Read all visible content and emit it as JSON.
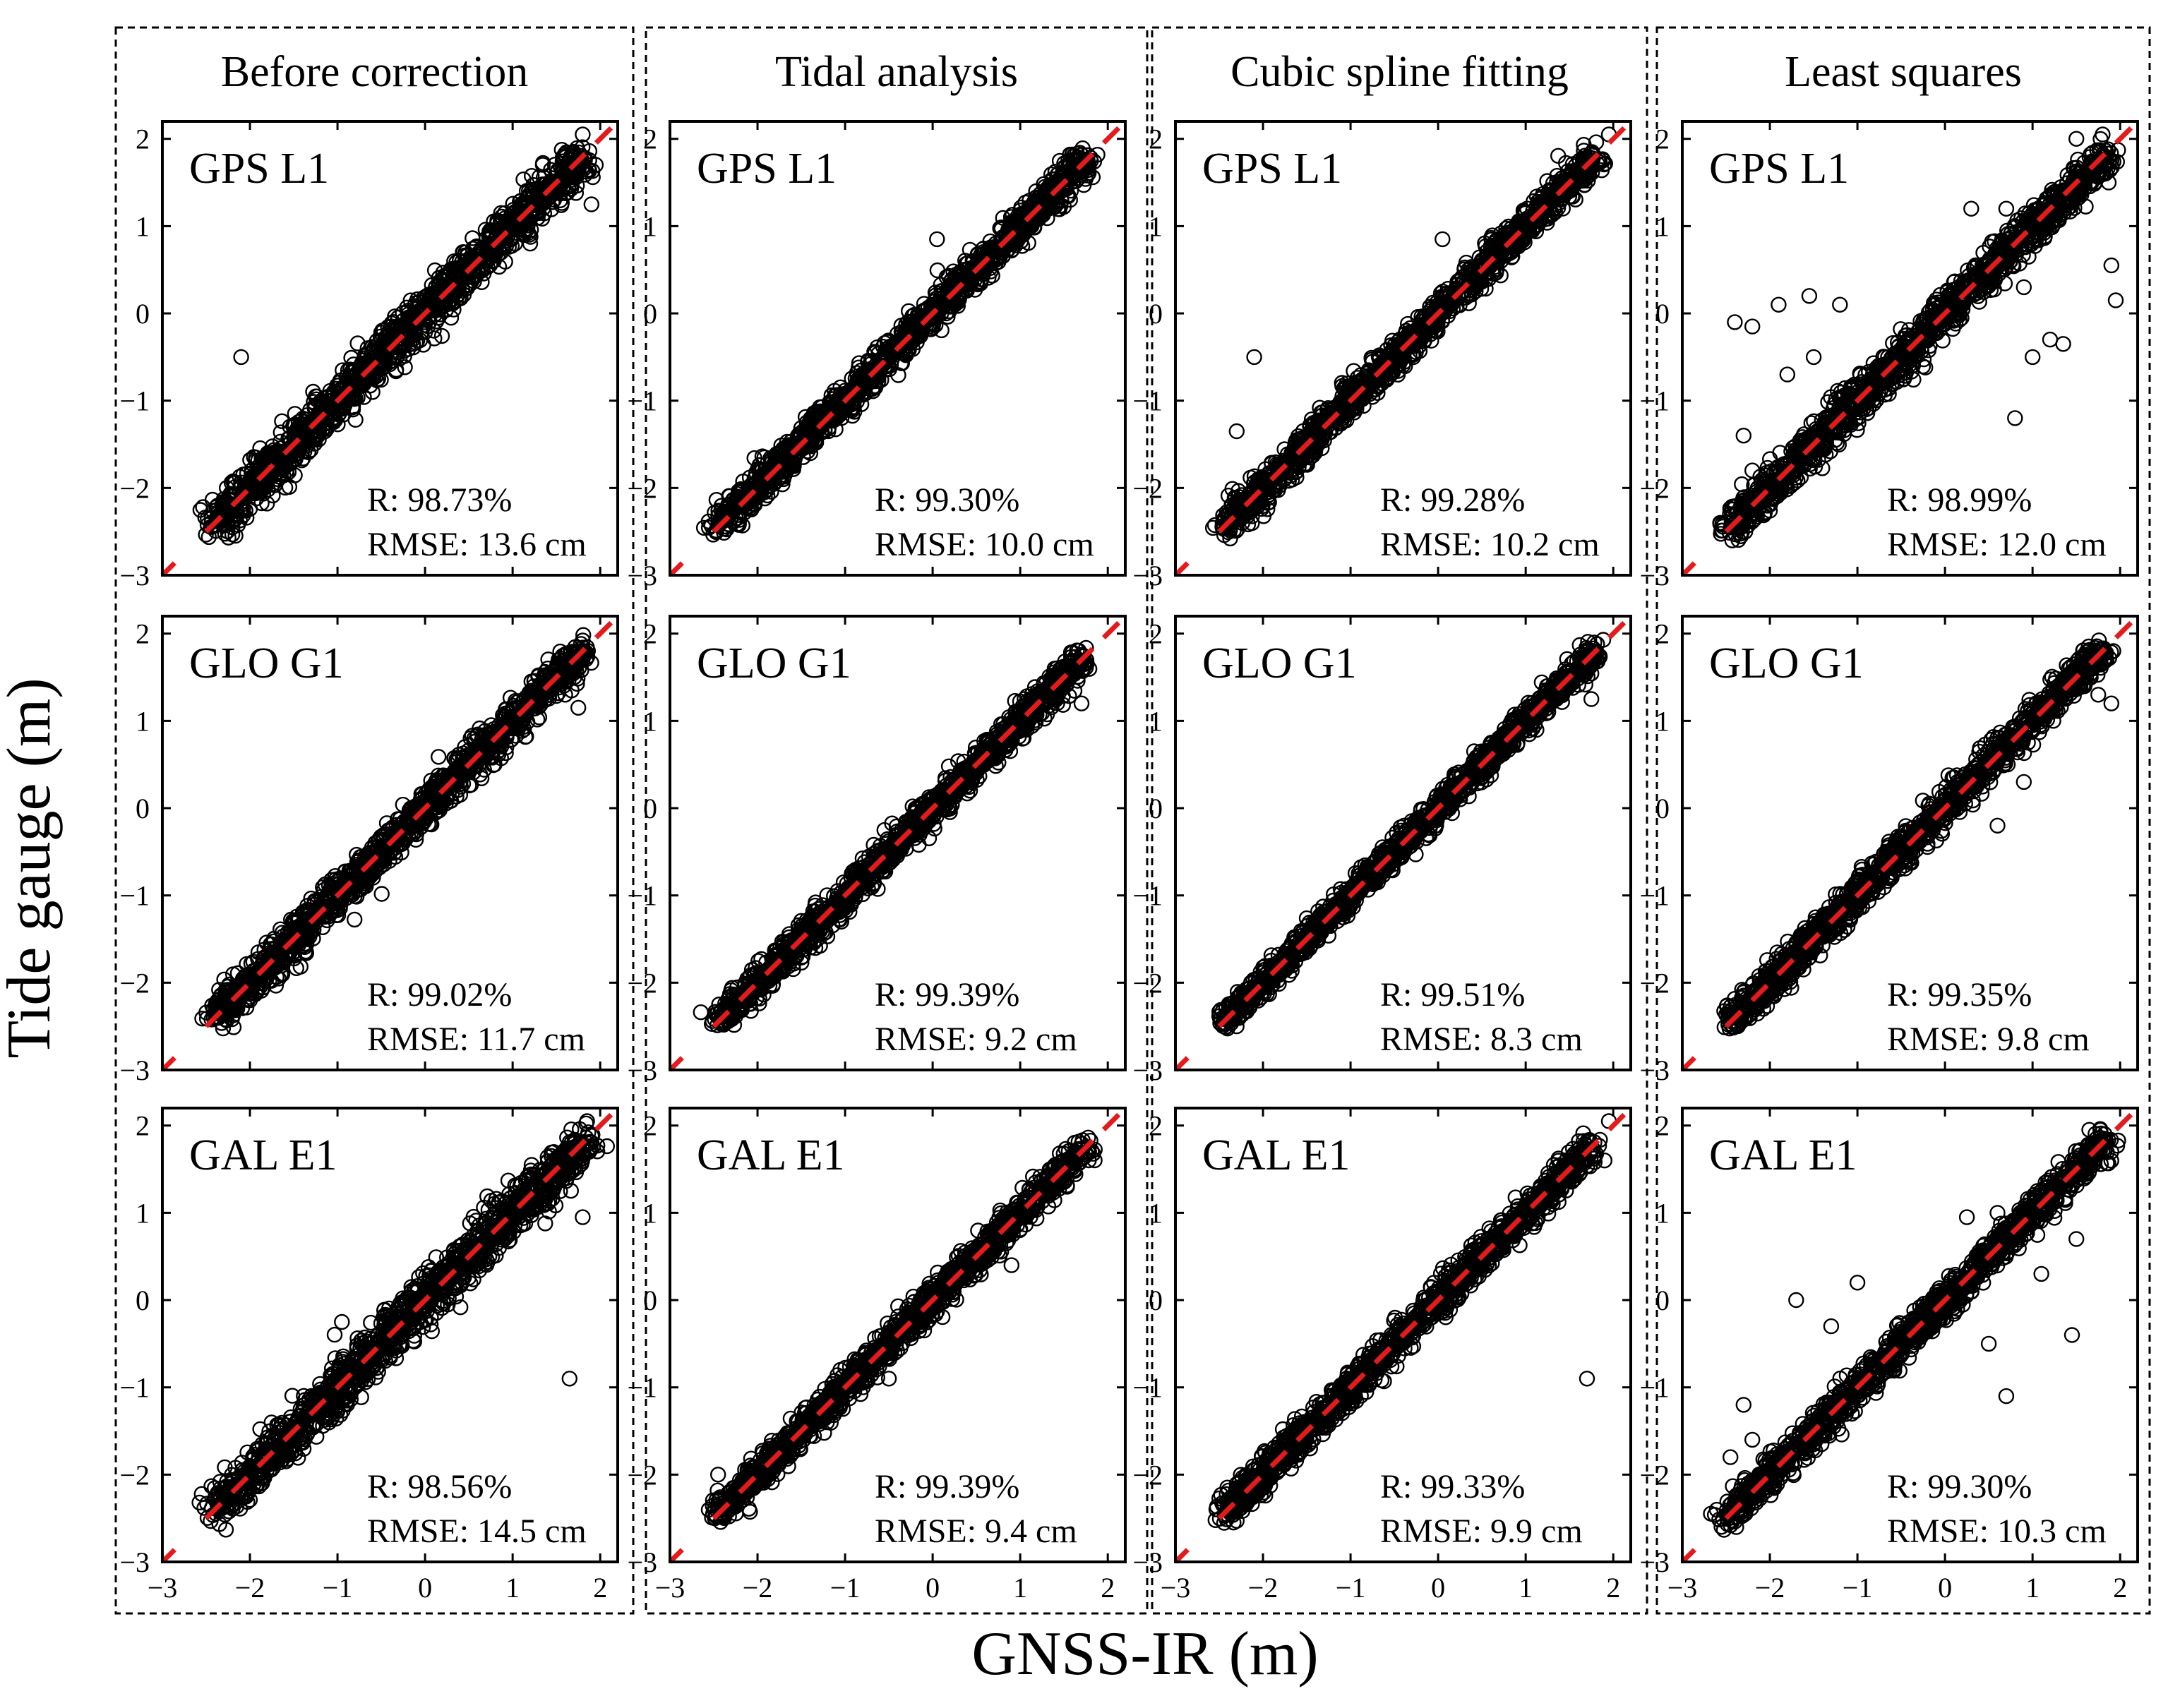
{
  "figure": {
    "x_axis_title": "GNSS-IR (m)",
    "y_axis_title": "Tide gauge (m)",
    "columns": [
      "Before correction",
      "Tidal analysis",
      "Cubic spline fitting",
      "Least squares"
    ],
    "rows": [
      "GPS L1",
      "GLO G1",
      "GAL E1"
    ]
  },
  "colors": {
    "reference_line": "#e41a1c",
    "markers": "#000000"
  },
  "chart_data": {
    "type": "scatter",
    "xlim": [
      -3,
      2.2
    ],
    "ylim": [
      -3,
      2.2
    ],
    "xticks": [
      "-3",
      "-2",
      "-1",
      "0",
      "1",
      "2"
    ],
    "yticks": [
      "-3",
      "-2",
      "-1",
      "0",
      "1",
      "2"
    ],
    "reference_line": {
      "from": [
        -2.5,
        -2.5
      ],
      "to": [
        2.2,
        2.2
      ],
      "style": "dashed",
      "color": "#e41a1c"
    },
    "panels": [
      {
        "column": "Before correction",
        "signal": "GPS L1",
        "r_text": "R: 98.73%",
        "rmse_text": "RMSE: 13.6 cm",
        "scatter_sd_m": 0.136,
        "range": [
          -2.4,
          1.85
        ],
        "outliers": [
          [
            -2.1,
            -0.5
          ],
          [
            1.8,
            2.05
          ],
          [
            1.2,
            0.8
          ],
          [
            1.9,
            1.25
          ]
        ]
      },
      {
        "column": "Tidal analysis",
        "signal": "GPS L1",
        "r_text": "R: 99.30%",
        "rmse_text": "RMSE: 10.0 cm",
        "scatter_sd_m": 0.1,
        "range": [
          -2.45,
          1.75
        ],
        "outliers": [
          [
            0.05,
            0.85
          ]
        ]
      },
      {
        "column": "Cubic spline fitting",
        "signal": "GPS L1",
        "r_text": "R: 99.28%",
        "rmse_text": "RMSE: 10.2 cm",
        "scatter_sd_m": 0.102,
        "range": [
          -2.45,
          1.8
        ],
        "outliers": [
          [
            -2.1,
            -0.5
          ],
          [
            1.95,
            2.05
          ],
          [
            0.05,
            0.85
          ],
          [
            -2.3,
            -1.35
          ]
        ]
      },
      {
        "column": "Least squares",
        "signal": "GPS L1",
        "r_text": "R: 98.99%",
        "rmse_text": "RMSE: 12.0 cm",
        "scatter_sd_m": 0.12,
        "range": [
          -2.45,
          1.85
        ],
        "outliers": [
          [
            -2.4,
            -0.1
          ],
          [
            -2.2,
            -0.15
          ],
          [
            -1.9,
            0.1
          ],
          [
            -1.55,
            0.2
          ],
          [
            -1.2,
            0.1
          ],
          [
            -1.5,
            -0.5
          ],
          [
            -2.2,
            -1.8
          ],
          [
            -2.3,
            -1.4
          ],
          [
            -1.8,
            -0.7
          ],
          [
            0.3,
            1.2
          ],
          [
            0.7,
            1.2
          ],
          [
            1.9,
            0.55
          ],
          [
            1.95,
            0.15
          ],
          [
            1.35,
            -0.35
          ],
          [
            0.8,
            -1.2
          ],
          [
            1.5,
            2.0
          ],
          [
            1.8,
            2.05
          ],
          [
            0.9,
            0.3
          ],
          [
            1.0,
            -0.5
          ],
          [
            1.2,
            -0.3
          ]
        ]
      },
      {
        "column": "Before correction",
        "signal": "GLO G1",
        "r_text": "R: 99.02%",
        "rmse_text": "RMSE: 11.7 cm",
        "scatter_sd_m": 0.117,
        "range": [
          -2.4,
          1.8
        ],
        "outliers": [
          [
            1.75,
            1.15
          ],
          [
            1.6,
            1.3
          ]
        ]
      },
      {
        "column": "Tidal analysis",
        "signal": "GLO G1",
        "r_text": "R: 99.39%",
        "rmse_text": "RMSE: 9.2 cm",
        "scatter_sd_m": 0.092,
        "range": [
          -2.45,
          1.72
        ],
        "outliers": [
          [
            1.7,
            1.2
          ]
        ]
      },
      {
        "column": "Cubic spline fitting",
        "signal": "GLO G1",
        "r_text": "R: 99.51%",
        "rmse_text": "RMSE: 8.3 cm",
        "scatter_sd_m": 0.083,
        "range": [
          -2.45,
          1.8
        ],
        "outliers": [
          [
            0.1,
            0.05
          ],
          [
            1.75,
            1.25
          ]
        ]
      },
      {
        "column": "Least squares",
        "signal": "GLO G1",
        "r_text": "R: 99.35%",
        "rmse_text": "RMSE: 9.8 cm",
        "scatter_sd_m": 0.098,
        "range": [
          -2.45,
          1.8
        ],
        "outliers": [
          [
            1.9,
            1.2
          ],
          [
            1.75,
            1.3
          ],
          [
            0.6,
            -0.2
          ],
          [
            0.9,
            0.3
          ],
          [
            -2.4,
            -2.45
          ]
        ]
      },
      {
        "column": "Before correction",
        "signal": "GAL E1",
        "r_text": "R: 98.56%",
        "rmse_text": "RMSE: 14.5 cm",
        "scatter_sd_m": 0.145,
        "range": [
          -2.4,
          1.85
        ],
        "outliers": [
          [
            1.65,
            -0.9
          ],
          [
            1.85,
            2.05
          ],
          [
            1.8,
            0.95
          ],
          [
            -0.95,
            -0.25
          ]
        ]
      },
      {
        "column": "Tidal analysis",
        "signal": "GAL E1",
        "r_text": "R: 99.39%",
        "rmse_text": "RMSE: 9.4 cm",
        "scatter_sd_m": 0.094,
        "range": [
          -2.45,
          1.75
        ],
        "outliers": [
          [
            -2.45,
            -2.0
          ],
          [
            -0.5,
            -0.9
          ],
          [
            0.9,
            0.4
          ]
        ]
      },
      {
        "column": "Cubic spline fitting",
        "signal": "GAL E1",
        "r_text": "R: 99.33%",
        "rmse_text": "RMSE: 9.9 cm",
        "scatter_sd_m": 0.099,
        "range": [
          -2.45,
          1.8
        ],
        "outliers": [
          [
            1.7,
            -0.9
          ],
          [
            1.95,
            2.05
          ],
          [
            1.9,
            1.6
          ]
        ]
      },
      {
        "column": "Least squares",
        "signal": "GAL E1",
        "r_text": "R: 99.30%",
        "rmse_text": "RMSE: 10.3 cm",
        "scatter_sd_m": 0.103,
        "range": [
          -2.5,
          1.85
        ],
        "outliers": [
          [
            -1.7,
            0.0
          ],
          [
            -2.45,
            -1.8
          ],
          [
            -2.3,
            -1.2
          ],
          [
            -2.2,
            -1.6
          ],
          [
            -1.3,
            -0.3
          ],
          [
            0.6,
            1.0
          ],
          [
            1.5,
            0.7
          ],
          [
            1.45,
            -0.4
          ],
          [
            1.1,
            0.3
          ],
          [
            0.7,
            -1.1
          ],
          [
            -1.0,
            0.2
          ],
          [
            0.25,
            0.95
          ],
          [
            0.5,
            -0.5
          ],
          [
            1.9,
            1.7
          ]
        ]
      }
    ]
  }
}
